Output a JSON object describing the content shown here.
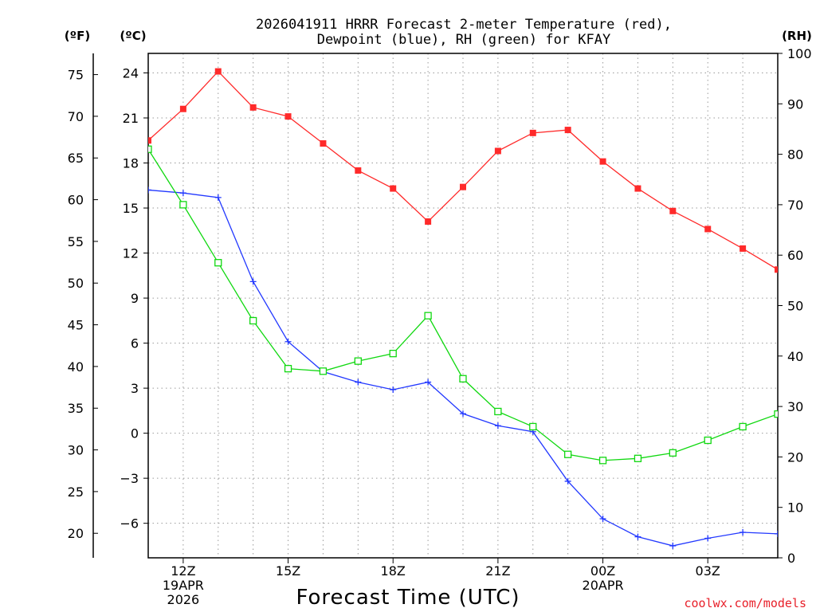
{
  "colors": {
    "temperature": "#ff2a2a",
    "dewpoint": "#2238ff",
    "rh": "#10d810",
    "credit": "#e8202a",
    "grid": "#9a9a9a"
  },
  "chart_data": {
    "type": "line",
    "title_lines": [
      "2026041911 HRRR Forecast 2-meter Temperature (red),",
      "Dewpoint (blue), RH (green) for KFAY"
    ],
    "xlabel": "Forecast Time (UTC)",
    "credit": "coolwx.com/models",
    "units": {
      "f": "(ºF)",
      "c": "(ºC)",
      "rh": "(RH)"
    },
    "x_range_hours": [
      11,
      29
    ],
    "x_ticks": [
      {
        "hour": 12,
        "lines": [
          "12Z",
          "19APR",
          "2026"
        ]
      },
      {
        "hour": 15,
        "lines": [
          "15Z"
        ]
      },
      {
        "hour": 18,
        "lines": [
          "18Z"
        ]
      },
      {
        "hour": 21,
        "lines": [
          "21Z"
        ]
      },
      {
        "hour": 24,
        "lines": [
          "00Z",
          "20APR"
        ]
      },
      {
        "hour": 27,
        "lines": [
          "03Z"
        ]
      }
    ],
    "y_celsius": {
      "range": [
        -8.3,
        25.3
      ],
      "ticks": [
        24,
        21,
        18,
        15,
        12,
        9,
        6,
        3,
        0,
        -3,
        -6
      ],
      "labels": [
        "24",
        "21",
        "18",
        "15",
        "12",
        "9",
        "6",
        "3",
        "0",
        "−3",
        "−6"
      ]
    },
    "y_fahrenheit": {
      "ticks": [
        75,
        70,
        65,
        60,
        55,
        50,
        45,
        40,
        35,
        30,
        25,
        20
      ],
      "labels": [
        "75",
        "70",
        "65",
        "60",
        "55",
        "50",
        "45",
        "40",
        "35",
        "30",
        "25",
        "20"
      ]
    },
    "y_rh": {
      "range": [
        0,
        100
      ],
      "ticks": [
        100,
        90,
        80,
        70,
        60,
        50,
        40,
        30,
        20,
        10,
        0
      ],
      "labels": [
        "100",
        "90",
        "80",
        "70",
        "60",
        "50",
        "40",
        "30",
        "20",
        "10",
        "0"
      ]
    },
    "series": [
      {
        "name": "Temperature",
        "units": "C",
        "axis": "celsius",
        "x": [
          11,
          12,
          13,
          14,
          15,
          16,
          17,
          18,
          19,
          20,
          21,
          22,
          23,
          24,
          25,
          26,
          27,
          28,
          29
        ],
        "values": [
          19.5,
          21.6,
          24.1,
          21.7,
          21.1,
          19.3,
          17.5,
          16.3,
          14.1,
          16.4,
          18.8,
          20.0,
          20.2,
          18.1,
          16.3,
          14.8,
          13.6,
          12.3,
          10.9
        ]
      },
      {
        "name": "Dewpoint",
        "units": "C",
        "axis": "celsius",
        "x": [
          11,
          12,
          13,
          14,
          15,
          16,
          17,
          18,
          19,
          20,
          21,
          22,
          23,
          24,
          25,
          26,
          27,
          28,
          29
        ],
        "values": [
          16.2,
          16.0,
          15.7,
          10.1,
          6.1,
          4.1,
          3.4,
          2.9,
          3.4,
          1.3,
          0.5,
          0.1,
          -3.2,
          -5.7,
          -6.9,
          -7.5,
          -7.0,
          -6.6,
          -6.7
        ]
      },
      {
        "name": "RH",
        "units": "%",
        "axis": "rh",
        "x": [
          11,
          12,
          13,
          14,
          15,
          16,
          17,
          18,
          19,
          20,
          21,
          22,
          23,
          24,
          25,
          26,
          27,
          28,
          29
        ],
        "values": [
          81,
          70,
          58.5,
          47,
          37.5,
          37,
          39,
          40.5,
          48,
          35.5,
          29,
          26,
          20.5,
          19.3,
          19.7,
          20.8,
          23.3,
          26,
          28.5
        ]
      }
    ]
  }
}
